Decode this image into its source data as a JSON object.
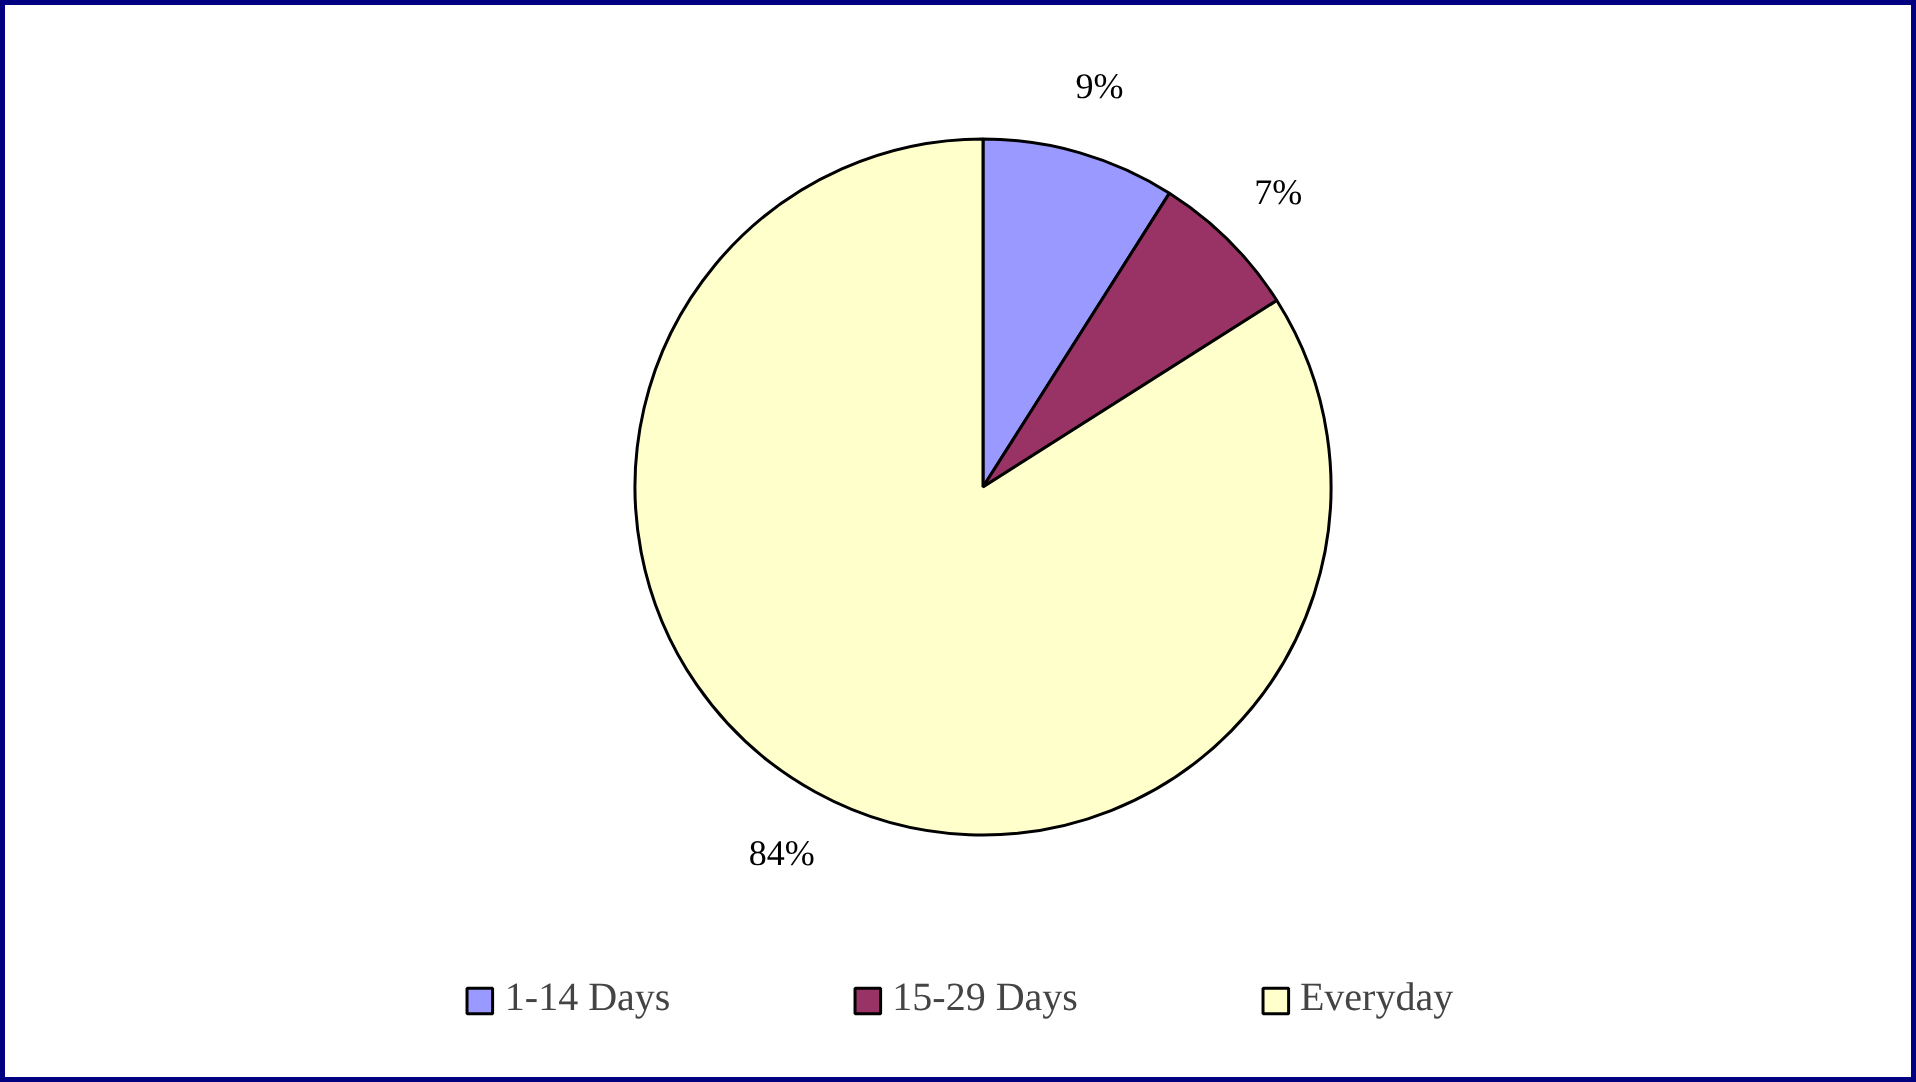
{
  "chart_data": {
    "type": "pie",
    "categories": [
      "1-14 Days",
      "15-29 Days",
      "Everyday"
    ],
    "values": [
      9,
      7,
      84
    ],
    "colors": [
      "#9999ff",
      "#993366",
      "#ffffcc"
    ],
    "value_labels": [
      "9%",
      "7%",
      "84%"
    ],
    "legend": "bottom"
  }
}
